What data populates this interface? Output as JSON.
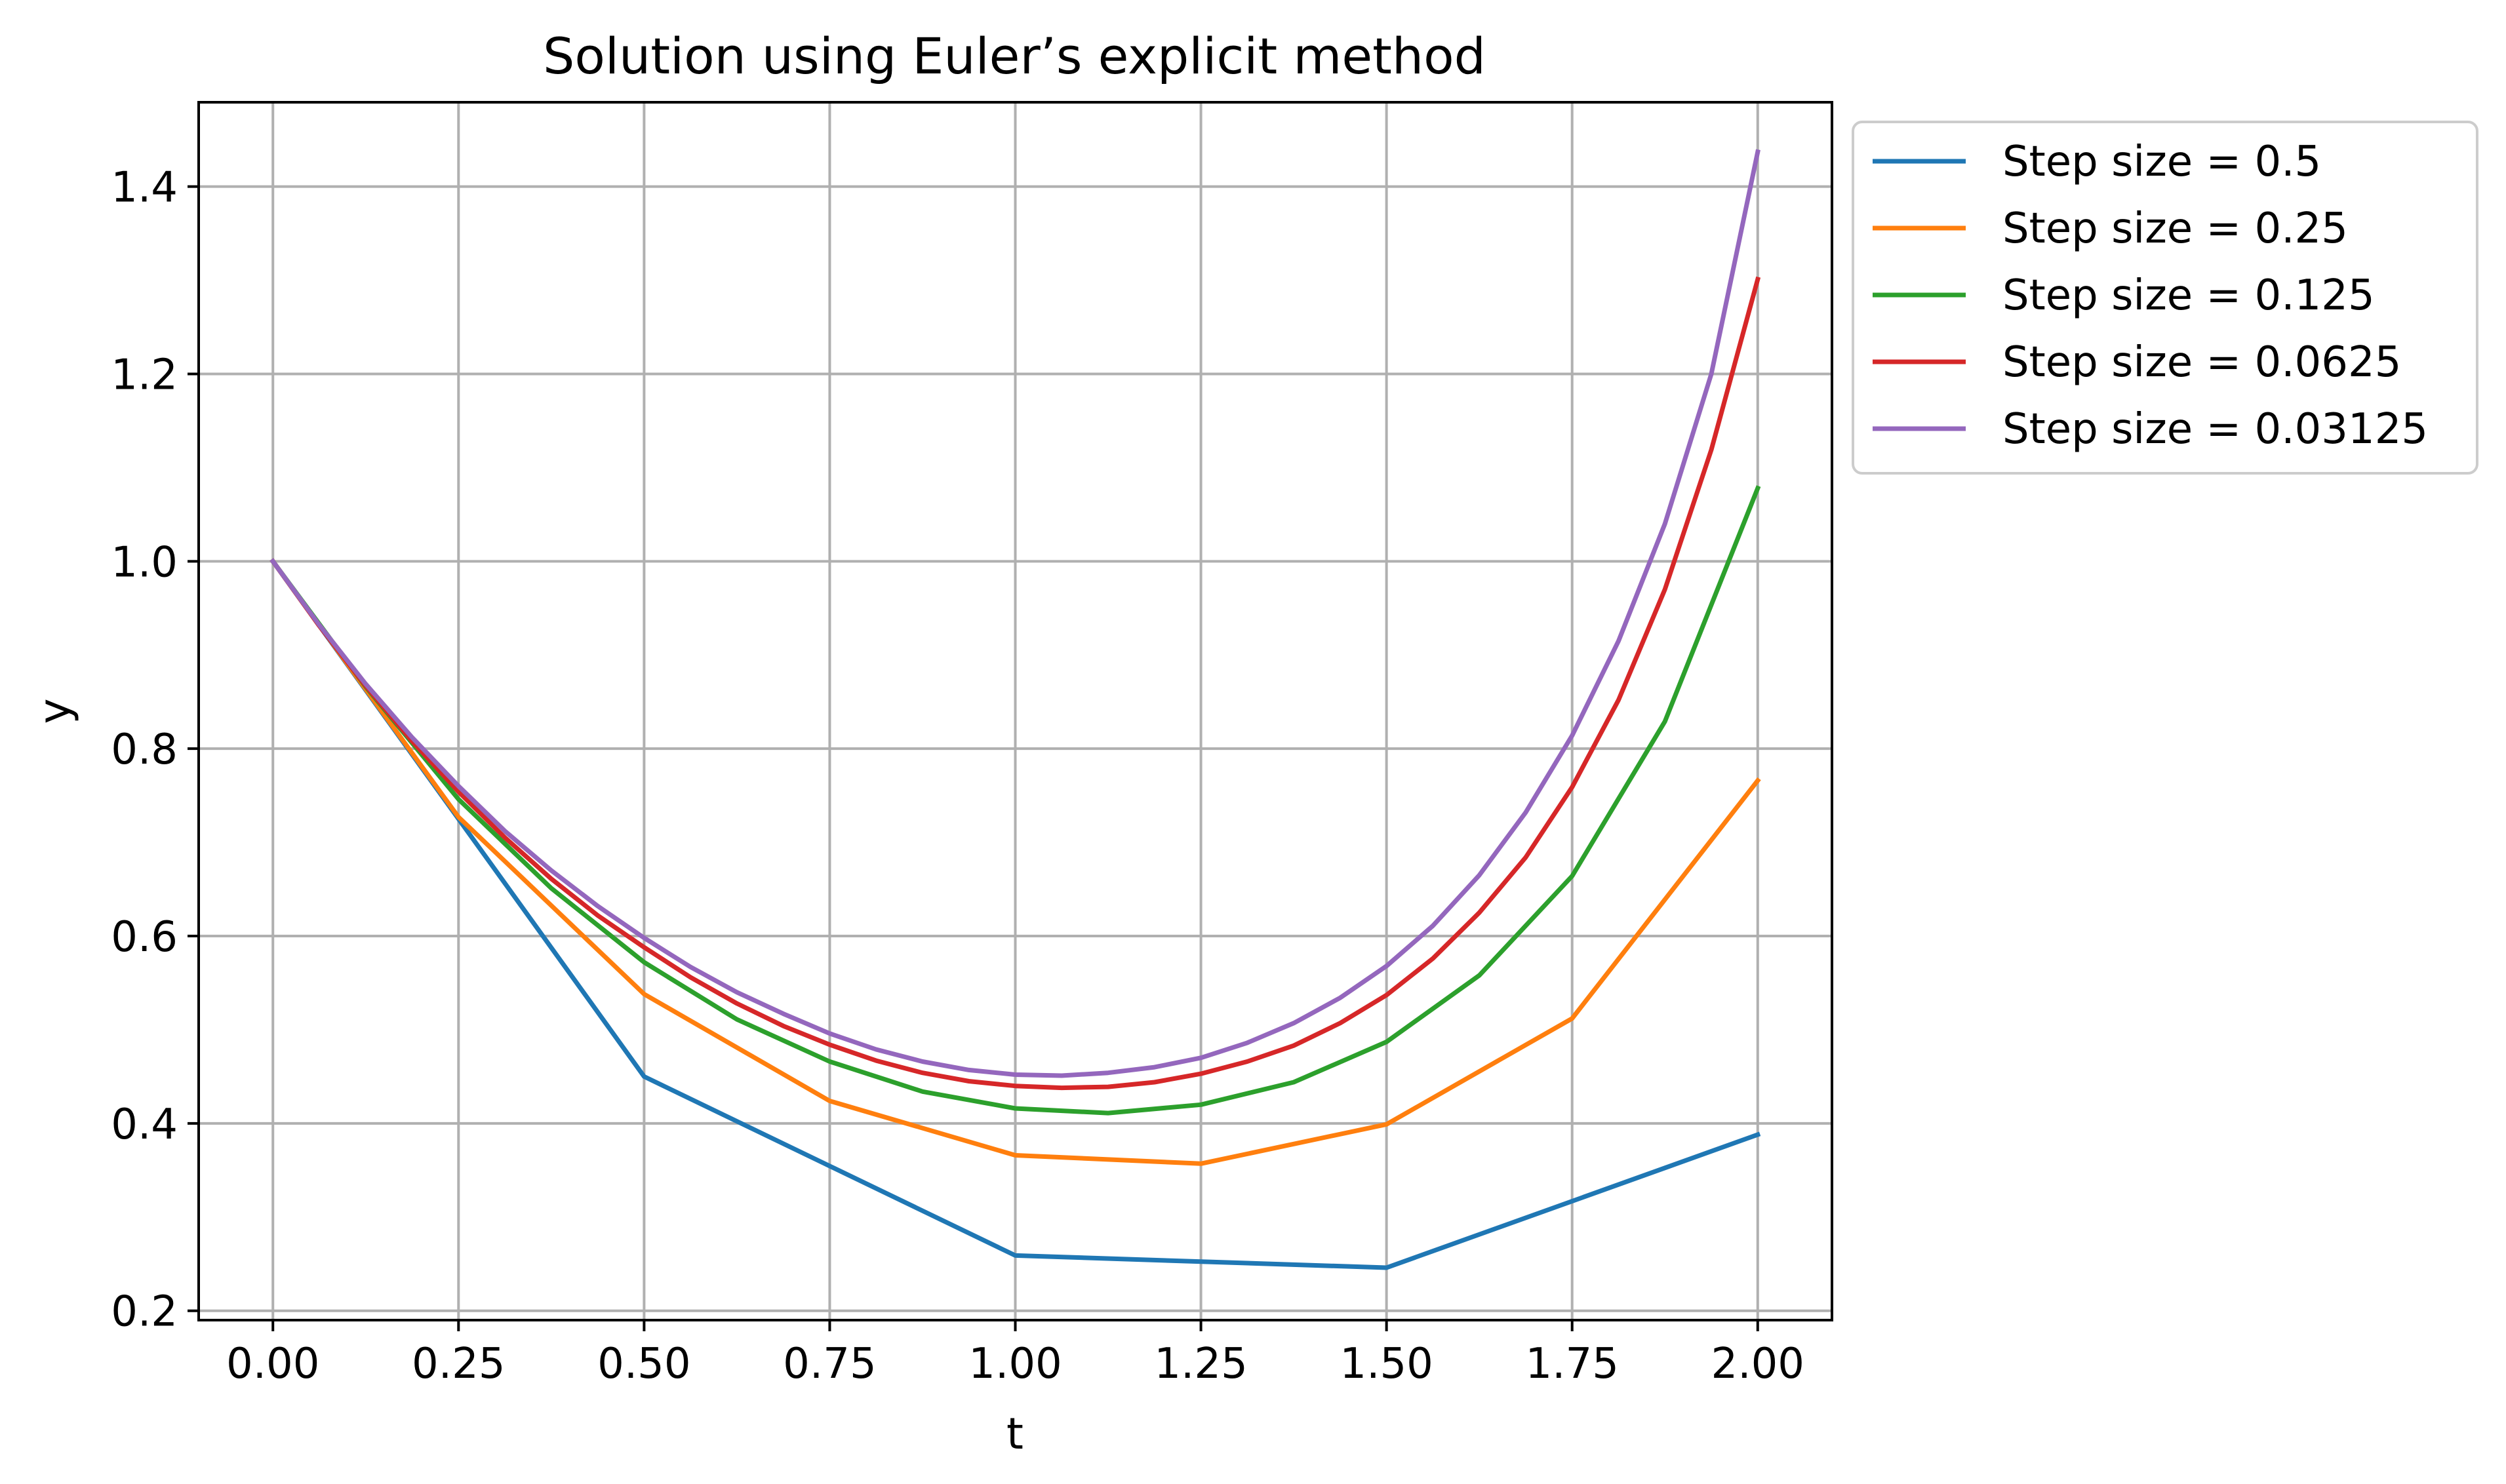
{
  "chart_data": {
    "type": "line",
    "title": "Solution using Euler’s explicit method",
    "xlabel": "t",
    "ylabel": "y",
    "xlim": [
      -0.1,
      2.1
    ],
    "ylim": [
      0.19,
      1.49
    ],
    "xticks": [
      0.0,
      0.25,
      0.5,
      0.75,
      1.0,
      1.25,
      1.5,
      1.75,
      2.0
    ],
    "xtick_labels": [
      "0.00",
      "0.25",
      "0.50",
      "0.75",
      "1.00",
      "1.25",
      "1.50",
      "1.75",
      "2.00"
    ],
    "yticks": [
      0.2,
      0.4,
      0.6,
      0.8,
      1.0,
      1.2,
      1.4
    ],
    "ytick_labels": [
      "0.2",
      "0.4",
      "0.6",
      "0.8",
      "1.0",
      "1.2",
      "1.4"
    ],
    "grid": true,
    "legend_position": "outside upper-right",
    "series": [
      {
        "name": "Step size = 0.5",
        "color": "#1f77b4",
        "x": [
          0.0,
          0.5,
          1.0,
          1.5,
          2.0
        ],
        "y": [
          1.0,
          0.45,
          0.259,
          0.246,
          0.388
        ]
      },
      {
        "name": "Step size = 0.25",
        "color": "#ff7f0e",
        "x": [
          0.0,
          0.25,
          0.5,
          0.75,
          1.0,
          1.25,
          1.5,
          1.75,
          2.0
        ],
        "y": [
          1.0,
          0.727,
          0.538,
          0.424,
          0.366,
          0.357,
          0.399,
          0.512,
          0.766
        ]
      },
      {
        "name": "Step size = 0.125",
        "color": "#2ca02c",
        "x": [
          0.0,
          0.125,
          0.25,
          0.375,
          0.5,
          0.625,
          0.75,
          0.875,
          1.0,
          1.125,
          1.25,
          1.375,
          1.5,
          1.625,
          1.75,
          1.875,
          2.0
        ],
        "y": [
          1.0,
          0.866,
          0.746,
          0.651,
          0.572,
          0.511,
          0.466,
          0.434,
          0.416,
          0.411,
          0.42,
          0.444,
          0.487,
          0.558,
          0.664,
          0.829,
          1.078
        ]
      },
      {
        "name": "Step size = 0.0625",
        "color": "#d62728",
        "x": [
          0.0,
          0.0625,
          0.125,
          0.1875,
          0.25,
          0.3125,
          0.375,
          0.4375,
          0.5,
          0.5625,
          0.625,
          0.6875,
          0.75,
          0.8125,
          0.875,
          0.9375,
          1.0,
          1.0625,
          1.125,
          1.1875,
          1.25,
          1.3125,
          1.375,
          1.4375,
          1.5,
          1.5625,
          1.625,
          1.6875,
          1.75,
          1.8125,
          1.875,
          1.9375,
          2.0
        ],
        "y": [
          1.0,
          0.931,
          0.867,
          0.808,
          0.754,
          0.705,
          0.661,
          0.622,
          0.588,
          0.556,
          0.528,
          0.504,
          0.484,
          0.467,
          0.454,
          0.445,
          0.44,
          0.438,
          0.439,
          0.444,
          0.453,
          0.466,
          0.483,
          0.507,
          0.537,
          0.576,
          0.625,
          0.684,
          0.759,
          0.852,
          0.97,
          1.119,
          1.301
        ]
      },
      {
        "name": "Step size = 0.03125",
        "color": "#9467bd",
        "x": [
          0.0,
          0.0625,
          0.125,
          0.1875,
          0.25,
          0.3125,
          0.375,
          0.4375,
          0.5,
          0.5625,
          0.625,
          0.6875,
          0.75,
          0.8125,
          0.875,
          0.9375,
          1.0,
          1.0625,
          1.125,
          1.1875,
          1.25,
          1.3125,
          1.375,
          1.4375,
          1.5,
          1.5625,
          1.625,
          1.6875,
          1.75,
          1.8125,
          1.875,
          1.9375,
          2.0
        ],
        "y": [
          1.0,
          0.932,
          0.869,
          0.812,
          0.76,
          0.712,
          0.67,
          0.632,
          0.598,
          0.567,
          0.54,
          0.517,
          0.496,
          0.479,
          0.466,
          0.457,
          0.452,
          0.451,
          0.454,
          0.46,
          0.47,
          0.486,
          0.507,
          0.534,
          0.568,
          0.611,
          0.665,
          0.732,
          0.814,
          0.915,
          1.04,
          1.2,
          1.437
        ]
      }
    ]
  }
}
